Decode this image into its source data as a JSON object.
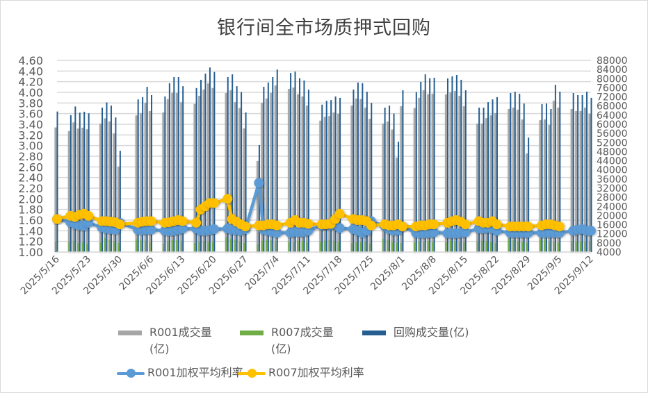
{
  "chart_data": {
    "type": "bar+line",
    "title": "银行间全市场质押式回购",
    "colors": {
      "r001_volume": "#a6a6a6",
      "r007_volume": "#70ad47",
      "repo_volume": "#255e91",
      "r001_rate": "#5b9bd5",
      "r007_rate": "#ffc000"
    },
    "left_axis": {
      "range": [
        1.0,
        4.6
      ],
      "ticks": [
        "1.00",
        "1.20",
        "1.40",
        "1.60",
        "1.80",
        "2.00",
        "2.20",
        "2.40",
        "2.60",
        "2.80",
        "3.00",
        "3.20",
        "3.40",
        "3.60",
        "3.80",
        "4.00",
        "4.20",
        "4.40",
        "4.60"
      ]
    },
    "right_axis": {
      "range": [
        4000,
        88000
      ],
      "ticks": [
        "4000",
        "8000",
        "12000",
        "16000",
        "20000",
        "24000",
        "28000",
        "32000",
        "36000",
        "40000",
        "44000",
        "48000",
        "52000",
        "56000",
        "60000",
        "64000",
        "68000",
        "72000",
        "76000",
        "80000",
        "84000",
        "88000"
      ]
    },
    "x_tick_labels": [
      "2025/5/16",
      "2025/5/23",
      "2025/5/30",
      "2025/6/6",
      "2025/6/13",
      "2025/6/20",
      "2025/6/27",
      "2025/7/4",
      "2025/7/11",
      "2025/7/18",
      "2025/7/25",
      "2025/8/1",
      "2025/8/8",
      "2025/8/15",
      "2025/8/22",
      "2025/8/29",
      "2025/9/5",
      "2025/9/12"
    ],
    "x_range": [
      "2025/5/16",
      "2025/9/12"
    ],
    "dates": [
      "2025/5/16",
      "2025/5/19",
      "2025/5/20",
      "2025/5/21",
      "2025/5/22",
      "2025/5/23",
      "2025/5/26",
      "2025/5/27",
      "2025/5/28",
      "2025/5/29",
      "2025/5/30",
      "2025/6/3",
      "2025/6/4",
      "2025/6/5",
      "2025/6/6",
      "2025/6/9",
      "2025/6/10",
      "2025/6/11",
      "2025/6/12",
      "2025/6/13",
      "2025/6/16",
      "2025/6/17",
      "2025/6/18",
      "2025/6/19",
      "2025/6/20",
      "2025/6/23",
      "2025/6/24",
      "2025/6/25",
      "2025/6/26",
      "2025/6/27",
      "2025/6/30",
      "2025/7/1",
      "2025/7/2",
      "2025/7/3",
      "2025/7/4",
      "2025/7/7",
      "2025/7/8",
      "2025/7/9",
      "2025/7/10",
      "2025/7/11",
      "2025/7/14",
      "2025/7/15",
      "2025/7/16",
      "2025/7/17",
      "2025/7/18",
      "2025/7/21",
      "2025/7/22",
      "2025/7/23",
      "2025/7/24",
      "2025/7/25",
      "2025/7/28",
      "2025/7/29",
      "2025/7/30",
      "2025/7/31",
      "2025/8/1",
      "2025/8/4",
      "2025/8/5",
      "2025/8/6",
      "2025/8/7",
      "2025/8/8",
      "2025/8/11",
      "2025/8/12",
      "2025/8/13",
      "2025/8/14",
      "2025/8/15",
      "2025/8/18",
      "2025/8/19",
      "2025/8/20",
      "2025/8/21",
      "2025/8/22",
      "2025/8/25",
      "2025/8/26",
      "2025/8/27",
      "2025/8/28",
      "2025/8/29",
      "2025/9/1",
      "2025/9/2",
      "2025/9/3",
      "2025/9/4",
      "2025/9/5",
      "2025/9/8",
      "2025/9/9",
      "2025/9/10",
      "2025/9/11",
      "2025/9/12"
    ],
    "series": [
      {
        "name": "R001成交量(亿)",
        "type": "bar",
        "axis": "right",
        "values": [
          58600,
          57000,
          60800,
          58100,
          58500,
          57800,
          60300,
          62600,
          61200,
          56000,
          41400,
          63900,
          64900,
          69400,
          65800,
          65200,
          71000,
          73700,
          73700,
          69700,
          68900,
          72500,
          75200,
          77900,
          75900,
          73700,
          74900,
          69700,
          67100,
          58200,
          43900,
          69400,
          71300,
          73700,
          77000,
          75500,
          76100,
          73200,
          72200,
          68200,
          61600,
          63300,
          63600,
          65200,
          64600,
          68200,
          71300,
          71000,
          67300,
          62400,
          60300,
          61200,
          57700,
          45400,
          67900,
          67100,
          71600,
          74900,
          73200,
          73400,
          73100,
          74000,
          74600,
          72500,
          67900,
          60300,
          60300,
          62700,
          63900,
          64900,
          66700,
          67300,
          66400,
          62100,
          47200,
          61800,
          62100,
          59700,
          70300,
          67300,
          66700,
          65800,
          65800,
          67300,
          64600
        ]
      },
      {
        "name": "R007成交量(亿)",
        "type": "bar",
        "axis": "right",
        "values": [
          8600,
          8400,
          8900,
          7800,
          8300,
          7600,
          8200,
          10200,
          9400,
          8800,
          7900,
          9600,
          9100,
          9000,
          8200,
          7600,
          8900,
          9300,
          9200,
          8700,
          7800,
          8600,
          8800,
          8500,
          8400,
          10500,
          9700,
          9200,
          8600,
          8000,
          7400,
          8900,
          9300,
          9100,
          8700,
          8300,
          8200,
          9100,
          8800,
          8400,
          8600,
          9000,
          9400,
          8900,
          8300,
          7800,
          8400,
          8300,
          8700,
          7700,
          9800,
          9300,
          8400,
          8100,
          7900,
          8200,
          8700,
          8500,
          8800,
          8300,
          8400,
          9000,
          8600,
          8500,
          8200,
          8700,
          9000,
          8800,
          8400,
          7900,
          9900,
          9200,
          8800,
          8500,
          8100,
          9600,
          9400,
          8700,
          8500,
          8200,
          8800,
          8600,
          8700,
          8600,
          8800
        ]
      },
      {
        "name": "回购成交量(亿)",
        "type": "bar",
        "axis": "right",
        "values": [
          65600,
          64000,
          67800,
          65100,
          65500,
          64800,
          67300,
          69600,
          68200,
          63000,
          48400,
          70900,
          71900,
          76400,
          72800,
          72200,
          78000,
          80700,
          80700,
          76700,
          75900,
          79500,
          82200,
          84900,
          82900,
          80700,
          81900,
          76700,
          74100,
          65200,
          50900,
          76400,
          78300,
          80700,
          84000,
          82500,
          83100,
          80200,
          79200,
          75200,
          68600,
          70300,
          70600,
          72200,
          71600,
          75200,
          78300,
          78000,
          74300,
          69400,
          67300,
          68200,
          64700,
          52400,
          74900,
          74100,
          78600,
          81900,
          80200,
          80400,
          80100,
          81000,
          81600,
          79500,
          74900,
          67300,
          67300,
          69700,
          70900,
          71900,
          73700,
          74300,
          73400,
          69100,
          54200,
          68800,
          69100,
          66700,
          77300,
          74300,
          73700,
          72800,
          72800,
          74300,
          71600
        ]
      },
      {
        "name": "R001加权平均利率",
        "type": "line",
        "axis": "left",
        "values": [
          1.62,
          1.56,
          1.52,
          1.5,
          1.49,
          1.55,
          1.46,
          1.44,
          1.43,
          1.42,
          1.55,
          1.42,
          1.41,
          1.42,
          1.42,
          1.4,
          1.39,
          1.4,
          1.42,
          1.44,
          1.44,
          1.4,
          1.4,
          1.41,
          1.43,
          1.44,
          1.42,
          1.41,
          1.4,
          1.43,
          2.3,
          1.42,
          1.4,
          1.38,
          1.36,
          1.36,
          1.38,
          1.37,
          1.38,
          1.4,
          1.5,
          1.52,
          1.5,
          1.52,
          1.45,
          1.43,
          1.4,
          1.36,
          1.4,
          1.58,
          1.49,
          1.43,
          1.4,
          1.41,
          1.48,
          1.36,
          1.35,
          1.35,
          1.36,
          1.37,
          1.35,
          1.35,
          1.35,
          1.36,
          1.37,
          1.44,
          1.44,
          1.45,
          1.44,
          1.4,
          1.36,
          1.36,
          1.36,
          1.36,
          1.36,
          1.36,
          1.36,
          1.36,
          1.36,
          1.36,
          1.4,
          1.42,
          1.43,
          1.4,
          1.4
        ]
      },
      {
        "name": "R007加权平均利率",
        "type": "line",
        "axis": "left",
        "values": [
          1.62,
          1.68,
          1.66,
          1.7,
          1.72,
          1.68,
          1.58,
          1.58,
          1.57,
          1.56,
          1.52,
          1.55,
          1.57,
          1.58,
          1.58,
          1.55,
          1.56,
          1.58,
          1.6,
          1.58,
          1.55,
          1.8,
          1.86,
          1.92,
          1.92,
          2.0,
          1.62,
          1.57,
          1.52,
          1.48,
          1.5,
          1.5,
          1.52,
          1.52,
          1.5,
          1.55,
          1.6,
          1.55,
          1.55,
          1.53,
          1.52,
          1.52,
          1.53,
          1.62,
          1.72,
          1.62,
          1.6,
          1.6,
          1.58,
          1.5,
          1.52,
          1.5,
          1.5,
          1.52,
          1.48,
          1.48,
          1.5,
          1.5,
          1.52,
          1.52,
          1.55,
          1.58,
          1.6,
          1.57,
          1.52,
          1.58,
          1.55,
          1.55,
          1.58,
          1.52,
          1.48,
          1.48,
          1.48,
          1.48,
          1.48,
          1.5,
          1.52,
          1.52,
          1.5,
          1.48,
          null,
          null,
          null,
          null,
          null
        ]
      }
    ],
    "legend": {
      "placement": "bottom",
      "r001_volume": "R001成交量",
      "r001_volume_unit": "(亿)",
      "r007_volume": "R007成交量",
      "r007_volume_unit": "(亿)",
      "repo_volume": "回购成交量(亿)",
      "r001_rate": "R001加权平均利率",
      "r007_rate": "R007加权平均利率"
    },
    "grid": true
  }
}
